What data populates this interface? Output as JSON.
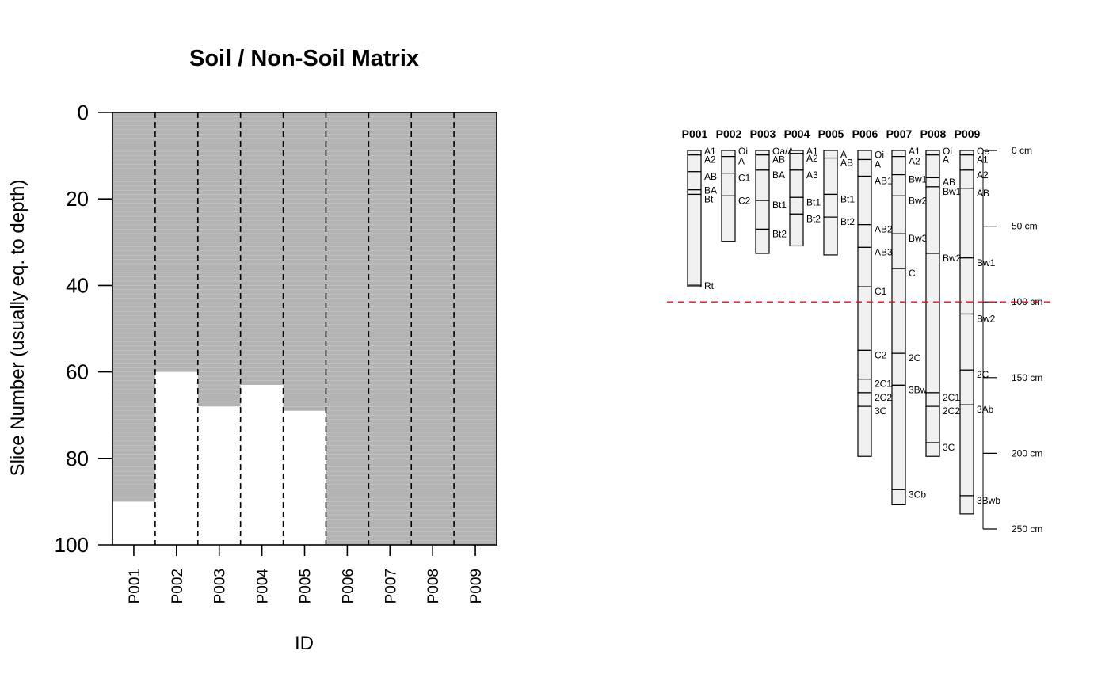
{
  "chart_data": [
    {
      "type": "heatmap",
      "title": "Soil / Non-Soil Matrix",
      "xlabel": "ID",
      "ylabel": "Slice Number (usually eq. to depth)",
      "categories": [
        "P001",
        "P002",
        "P003",
        "P004",
        "P005",
        "P006",
        "P007",
        "P008",
        "P009"
      ],
      "soil_slices": [
        90,
        60,
        68,
        63,
        69,
        100,
        100,
        100,
        100
      ],
      "ylim": [
        100,
        0
      ],
      "y_ticks": [
        "0",
        "20",
        "40",
        "60",
        "80",
        "100"
      ],
      "colors": {
        "soil": "#b3b3b3",
        "non_soil": "#ffffff",
        "frame": "#000000"
      }
    },
    {
      "type": "table",
      "max_depth_line": 100,
      "depth_axis": {
        "ticks": [
          0,
          50,
          100,
          150,
          200,
          250
        ],
        "labels": [
          "0 cm",
          "50 cm",
          "100 cm",
          "150 cm",
          "200 cm",
          "250 cm"
        ],
        "max": 250
      },
      "colors": {
        "horizon_fill": "#f0f0f0",
        "line": "#000000",
        "depth_line": "#ff0000"
      },
      "profiles": [
        {
          "id": "P001",
          "horizons": [
            {
              "name": "A1",
              "top": 0,
              "bottom": 3
            },
            {
              "name": "A2",
              "top": 3,
              "bottom": 14
            },
            {
              "name": "AB",
              "top": 14,
              "bottom": 26
            },
            {
              "name": "BA",
              "top": 26,
              "bottom": 29
            },
            {
              "name": "Bt",
              "top": 29,
              "bottom": 89
            },
            {
              "name": "Rt",
              "top": 89,
              "bottom": 90
            }
          ]
        },
        {
          "id": "P002",
          "horizons": [
            {
              "name": "Oi",
              "top": 0,
              "bottom": 4
            },
            {
              "name": "A",
              "top": 4,
              "bottom": 15
            },
            {
              "name": "C1",
              "top": 15,
              "bottom": 30
            },
            {
              "name": "C2",
              "top": 30,
              "bottom": 60
            }
          ]
        },
        {
          "id": "P003",
          "horizons": [
            {
              "name": "Oa/A",
              "top": 0,
              "bottom": 3
            },
            {
              "name": "AB",
              "top": 3,
              "bottom": 13
            },
            {
              "name": "BA",
              "top": 13,
              "bottom": 33
            },
            {
              "name": "Bt1",
              "top": 33,
              "bottom": 52
            },
            {
              "name": "Bt2",
              "top": 52,
              "bottom": 68
            }
          ]
        },
        {
          "id": "P004",
          "horizons": [
            {
              "name": "A1",
              "top": 0,
              "bottom": 2
            },
            {
              "name": "A2",
              "top": 2,
              "bottom": 13
            },
            {
              "name": "A3",
              "top": 13,
              "bottom": 31
            },
            {
              "name": "Bt1",
              "top": 31,
              "bottom": 42
            },
            {
              "name": "Bt2",
              "top": 42,
              "bottom": 63
            }
          ]
        },
        {
          "id": "P005",
          "horizons": [
            {
              "name": "A",
              "top": 0,
              "bottom": 5
            },
            {
              "name": "AB",
              "top": 5,
              "bottom": 29
            },
            {
              "name": "Bt1",
              "top": 29,
              "bottom": 44
            },
            {
              "name": "Bt2",
              "top": 44,
              "bottom": 69
            }
          ]
        },
        {
          "id": "P006",
          "horizons": [
            {
              "name": "Oi",
              "top": 0,
              "bottom": 6
            },
            {
              "name": "A",
              "top": 6,
              "bottom": 17
            },
            {
              "name": "AB1",
              "top": 17,
              "bottom": 49
            },
            {
              "name": "AB2",
              "top": 49,
              "bottom": 64
            },
            {
              "name": "AB3",
              "top": 64,
              "bottom": 90
            },
            {
              "name": "C1",
              "top": 90,
              "bottom": 132
            },
            {
              "name": "C2",
              "top": 132,
              "bottom": 151
            },
            {
              "name": "2C1",
              "top": 151,
              "bottom": 160
            },
            {
              "name": "2C2",
              "top": 160,
              "bottom": 169
            },
            {
              "name": "3C",
              "top": 169,
              "bottom": 202
            }
          ]
        },
        {
          "id": "P007",
          "horizons": [
            {
              "name": "A1",
              "top": 0,
              "bottom": 4
            },
            {
              "name": "A2",
              "top": 4,
              "bottom": 16
            },
            {
              "name": "Bw1",
              "top": 16,
              "bottom": 30
            },
            {
              "name": "Bw2",
              "top": 30,
              "bottom": 55
            },
            {
              "name": "Bw3",
              "top": 55,
              "bottom": 78
            },
            {
              "name": "C",
              "top": 78,
              "bottom": 134
            },
            {
              "name": "2C",
              "top": 134,
              "bottom": 155
            },
            {
              "name": "3Bw",
              "top": 155,
              "bottom": 224
            },
            {
              "name": "3Cb",
              "top": 224,
              "bottom": 234
            }
          ]
        },
        {
          "id": "P008",
          "horizons": [
            {
              "name": "Oi",
              "top": 0,
              "bottom": 3
            },
            {
              "name": "A",
              "top": 3,
              "bottom": 18
            },
            {
              "name": "AB",
              "top": 18,
              "bottom": 24
            },
            {
              "name": "Bw1",
              "top": 24,
              "bottom": 68
            },
            {
              "name": "Bw2",
              "top": 68,
              "bottom": 160
            },
            {
              "name": "2C1",
              "top": 160,
              "bottom": 169
            },
            {
              "name": "2C2",
              "top": 169,
              "bottom": 193
            },
            {
              "name": "3C",
              "top": 193,
              "bottom": 202
            }
          ]
        },
        {
          "id": "P009",
          "horizons": [
            {
              "name": "Oe",
              "top": 0,
              "bottom": 3
            },
            {
              "name": "A1",
              "top": 3,
              "bottom": 13
            },
            {
              "name": "A2",
              "top": 13,
              "bottom": 25
            },
            {
              "name": "AB",
              "top": 25,
              "bottom": 71
            },
            {
              "name": "Bw1",
              "top": 71,
              "bottom": 108
            },
            {
              "name": "Bw2",
              "top": 108,
              "bottom": 145
            },
            {
              "name": "2C",
              "top": 145,
              "bottom": 168
            },
            {
              "name": "3Ab",
              "top": 168,
              "bottom": 228
            },
            {
              "name": "3Bwb",
              "top": 228,
              "bottom": 240
            }
          ]
        }
      ]
    }
  ]
}
